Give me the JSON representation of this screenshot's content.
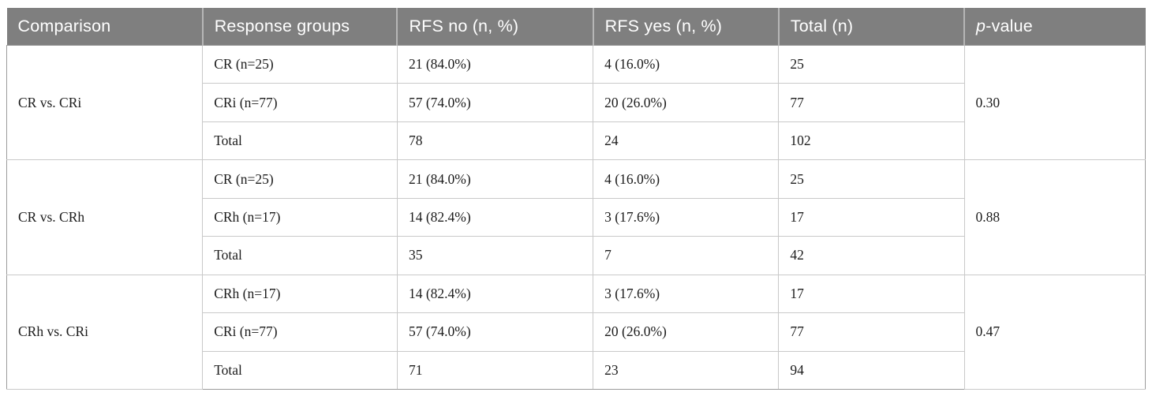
{
  "table": {
    "headers": [
      "Comparison",
      "Response groups",
      "RFS no (n, %)",
      "RFS yes (n, %)",
      "Total (n)"
    ],
    "p_header": {
      "italic": "p",
      "rest": "-value"
    },
    "blocks": [
      {
        "comparison": "CR vs. CRi",
        "p_value": "0.30",
        "rows": [
          {
            "group": "CR (n=25)",
            "rfs_no": "21 (84.0%)",
            "rfs_yes": "4 (16.0%)",
            "total": "25"
          },
          {
            "group": "CRi (n=77)",
            "rfs_no": "57 (74.0%)",
            "rfs_yes": "20 (26.0%)",
            "total": "77"
          },
          {
            "group": "Total",
            "rfs_no": "78",
            "rfs_yes": "24",
            "total": "102"
          }
        ]
      },
      {
        "comparison": "CR vs. CRh",
        "p_value": "0.88",
        "rows": [
          {
            "group": "CR (n=25)",
            "rfs_no": "21 (84.0%)",
            "rfs_yes": "4 (16.0%)",
            "total": "25"
          },
          {
            "group": "CRh (n=17)",
            "rfs_no": "14 (82.4%)",
            "rfs_yes": "3 (17.6%)",
            "total": "17"
          },
          {
            "group": "Total",
            "rfs_no": "35",
            "rfs_yes": "7",
            "total": "42"
          }
        ]
      },
      {
        "comparison": "CRh vs. CRi",
        "p_value": "0.47",
        "rows": [
          {
            "group": "CRh (n=17)",
            "rfs_no": "14 (82.4%)",
            "rfs_yes": "3 (17.6%)",
            "total": "17"
          },
          {
            "group": "CRi (n=77)",
            "rfs_no": "57 (74.0%)",
            "rfs_yes": "20 (26.0%)",
            "total": "77"
          },
          {
            "group": "Total",
            "rfs_no": "71",
            "rfs_yes": "23",
            "total": "94"
          }
        ]
      }
    ]
  },
  "colors": {
    "header_bg": "#7f7f7f",
    "header_text": "#ffffff",
    "body_text": "#1c1c1c",
    "grid_line": "#c9c9c9",
    "block_line": "#9c9c9c",
    "header_divider": "#b6b6b6"
  }
}
